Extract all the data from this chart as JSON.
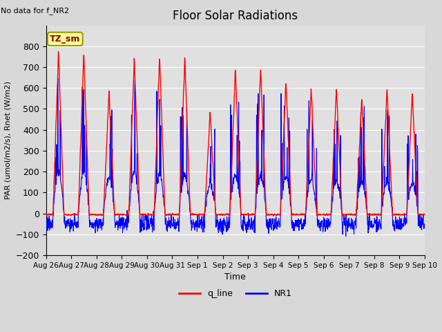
{
  "title": "Floor Solar Radiations",
  "xlabel": "Time",
  "ylabel": "PAR (umol/m2/s), Rnet (W/m2)",
  "top_left_text": "No data for f_NR2",
  "annotation_box": "TZ_sm",
  "ylim": [
    -200,
    900
  ],
  "yticks": [
    -200,
    -100,
    0,
    100,
    200,
    300,
    400,
    500,
    600,
    700,
    800
  ],
  "xtick_labels": [
    "Aug 26",
    "Aug 27",
    "Aug 28",
    "Aug 29",
    "Aug 30",
    "Aug 31",
    "Sep 1",
    "Sep 2",
    "Sep 3",
    "Sep 4",
    "Sep 5",
    "Sep 6",
    "Sep 7",
    "Sep 8",
    "Sep 9",
    "Sep 10"
  ],
  "q_line_color": "#FF0000",
  "NR1_color": "#0000FF",
  "legend_labels": [
    "q_line",
    "NR1"
  ],
  "bg_color": "#E0E0E0",
  "grid_color": "#FFFFFF",
  "n_days": 15,
  "pts_per_day": 96,
  "q_line_peaks": [
    780,
    775,
    590,
    750,
    760,
    750,
    490,
    700,
    700,
    640,
    605,
    605,
    555,
    600,
    580
  ],
  "NR1_peaks": [
    665,
    665,
    580,
    650,
    620,
    600,
    470,
    600,
    590,
    580,
    550,
    520,
    515,
    500,
    480
  ],
  "q_night_base": -5,
  "nr_night_base": -50,
  "nr_night_min": -100
}
